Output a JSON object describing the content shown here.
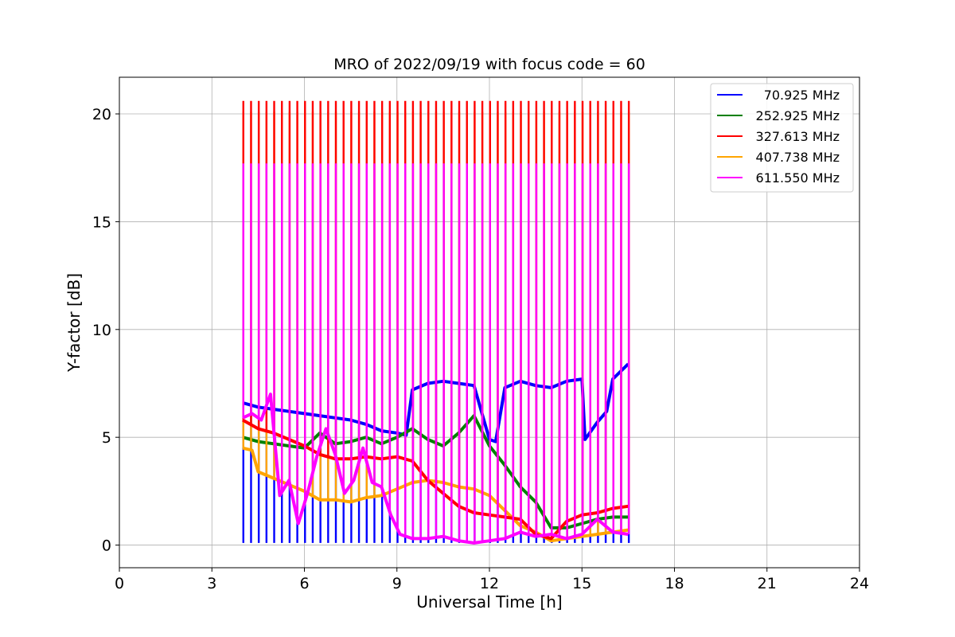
{
  "chart_data": {
    "type": "line",
    "title": "MRO of 2022/09/19 with focus code = 60",
    "xlabel": "Universal Time [h]",
    "ylabel": "Y-factor [dB]",
    "xlim": [
      0,
      24
    ],
    "ylim": [
      -1.05,
      21.7
    ],
    "xticks": [
      0,
      3,
      6,
      9,
      12,
      15,
      18,
      21,
      24
    ],
    "yticks": [
      0,
      5,
      10,
      15,
      20
    ],
    "grid": true,
    "legend_position": "top-right",
    "spike_period_h": 0.25,
    "spikes": {
      "start_h": 4.0,
      "count": 51,
      "peak_envelope": [
        {
          "name": "327.613 MHz",
          "value": 20.6
        },
        {
          "name": "407.738 MHz",
          "value": 20.1
        },
        {
          "name": "611.550 MHz",
          "value": 17.7
        },
        {
          "name": "70.925 MHz",
          "value": 0.1
        }
      ]
    },
    "series": [
      {
        "name": "70.925 MHz",
        "color": "#0000ff",
        "x": [
          4.0,
          4.5,
          5.0,
          5.5,
          6.0,
          6.5,
          7.0,
          7.5,
          8.0,
          8.5,
          9.0,
          9.3,
          9.5,
          10.0,
          10.5,
          11.0,
          11.5,
          12.0,
          12.2,
          12.5,
          13.0,
          13.5,
          14.0,
          14.5,
          15.0,
          15.1,
          15.5,
          15.8,
          16.0,
          16.5
        ],
        "values": [
          6.6,
          6.4,
          6.3,
          6.2,
          6.1,
          6.0,
          5.9,
          5.8,
          5.6,
          5.3,
          5.2,
          5.1,
          7.2,
          7.5,
          7.6,
          7.5,
          7.4,
          4.9,
          4.8,
          7.3,
          7.6,
          7.4,
          7.3,
          7.6,
          7.7,
          4.9,
          5.7,
          6.2,
          7.7,
          8.4
        ]
      },
      {
        "name": "252.925 MHz",
        "color": "#008000",
        "x": [
          4.0,
          4.5,
          5.0,
          5.5,
          6.0,
          6.5,
          7.0,
          7.5,
          8.0,
          8.5,
          9.0,
          9.5,
          10.0,
          10.5,
          11.0,
          11.5,
          12.0,
          12.5,
          13.0,
          13.5,
          14.0,
          14.5,
          15.0,
          15.5,
          16.0,
          16.5
        ],
        "values": [
          5.0,
          4.8,
          4.7,
          4.6,
          4.5,
          5.2,
          4.7,
          4.8,
          5.0,
          4.7,
          5.0,
          5.4,
          4.9,
          4.6,
          5.2,
          6.0,
          4.6,
          3.7,
          2.7,
          2.0,
          0.8,
          0.8,
          1.0,
          1.2,
          1.3,
          1.3
        ]
      },
      {
        "name": "327.613 MHz",
        "color": "#ff0000",
        "x": [
          4.0,
          4.5,
          5.0,
          5.5,
          6.0,
          6.5,
          7.0,
          7.5,
          8.0,
          8.5,
          9.0,
          9.5,
          10.0,
          10.5,
          11.0,
          11.5,
          12.0,
          12.5,
          13.0,
          13.5,
          14.0,
          14.5,
          15.0,
          15.5,
          16.0,
          16.5
        ],
        "values": [
          5.8,
          5.4,
          5.2,
          4.9,
          4.6,
          4.2,
          4.0,
          4.0,
          4.1,
          4.0,
          4.1,
          3.9,
          3.0,
          2.4,
          1.8,
          1.5,
          1.4,
          1.3,
          1.2,
          0.5,
          0.3,
          1.1,
          1.4,
          1.5,
          1.7,
          1.8
        ]
      },
      {
        "name": "407.738 MHz",
        "color": "#ffa500",
        "x": [
          4.0,
          4.3,
          4.5,
          5.0,
          5.5,
          6.0,
          6.5,
          7.0,
          7.5,
          8.0,
          8.5,
          9.0,
          9.5,
          10.0,
          10.5,
          11.0,
          11.5,
          12.0,
          12.5,
          13.0,
          13.5,
          14.0,
          14.5,
          15.0,
          15.5,
          16.0,
          16.5
        ],
        "values": [
          4.5,
          4.4,
          3.4,
          3.1,
          2.8,
          2.5,
          2.1,
          2.1,
          2.0,
          2.2,
          2.3,
          2.6,
          2.9,
          3.0,
          2.9,
          2.7,
          2.6,
          2.3,
          1.6,
          0.9,
          0.6,
          0.2,
          0.3,
          0.4,
          0.5,
          0.6,
          0.7
        ]
      },
      {
        "name": "611.550 MHz",
        "color": "#ff00ff",
        "x": [
          4.0,
          4.3,
          4.6,
          4.9,
          5.2,
          5.5,
          5.8,
          6.1,
          6.4,
          6.7,
          7.0,
          7.3,
          7.6,
          7.9,
          8.2,
          8.5,
          8.8,
          9.1,
          9.5,
          10.0,
          10.5,
          11.0,
          11.5,
          12.0,
          12.5,
          13.0,
          13.5,
          14.0,
          14.5,
          15.0,
          15.5,
          16.0,
          16.5
        ],
        "values": [
          5.9,
          6.1,
          5.8,
          7.0,
          2.3,
          3.0,
          1.0,
          2.4,
          4.1,
          5.4,
          4.2,
          2.4,
          3.0,
          4.5,
          2.9,
          2.7,
          1.4,
          0.5,
          0.3,
          0.3,
          0.4,
          0.2,
          0.1,
          0.2,
          0.3,
          0.6,
          0.4,
          0.5,
          0.3,
          0.5,
          1.2,
          0.6,
          0.5
        ]
      }
    ]
  }
}
